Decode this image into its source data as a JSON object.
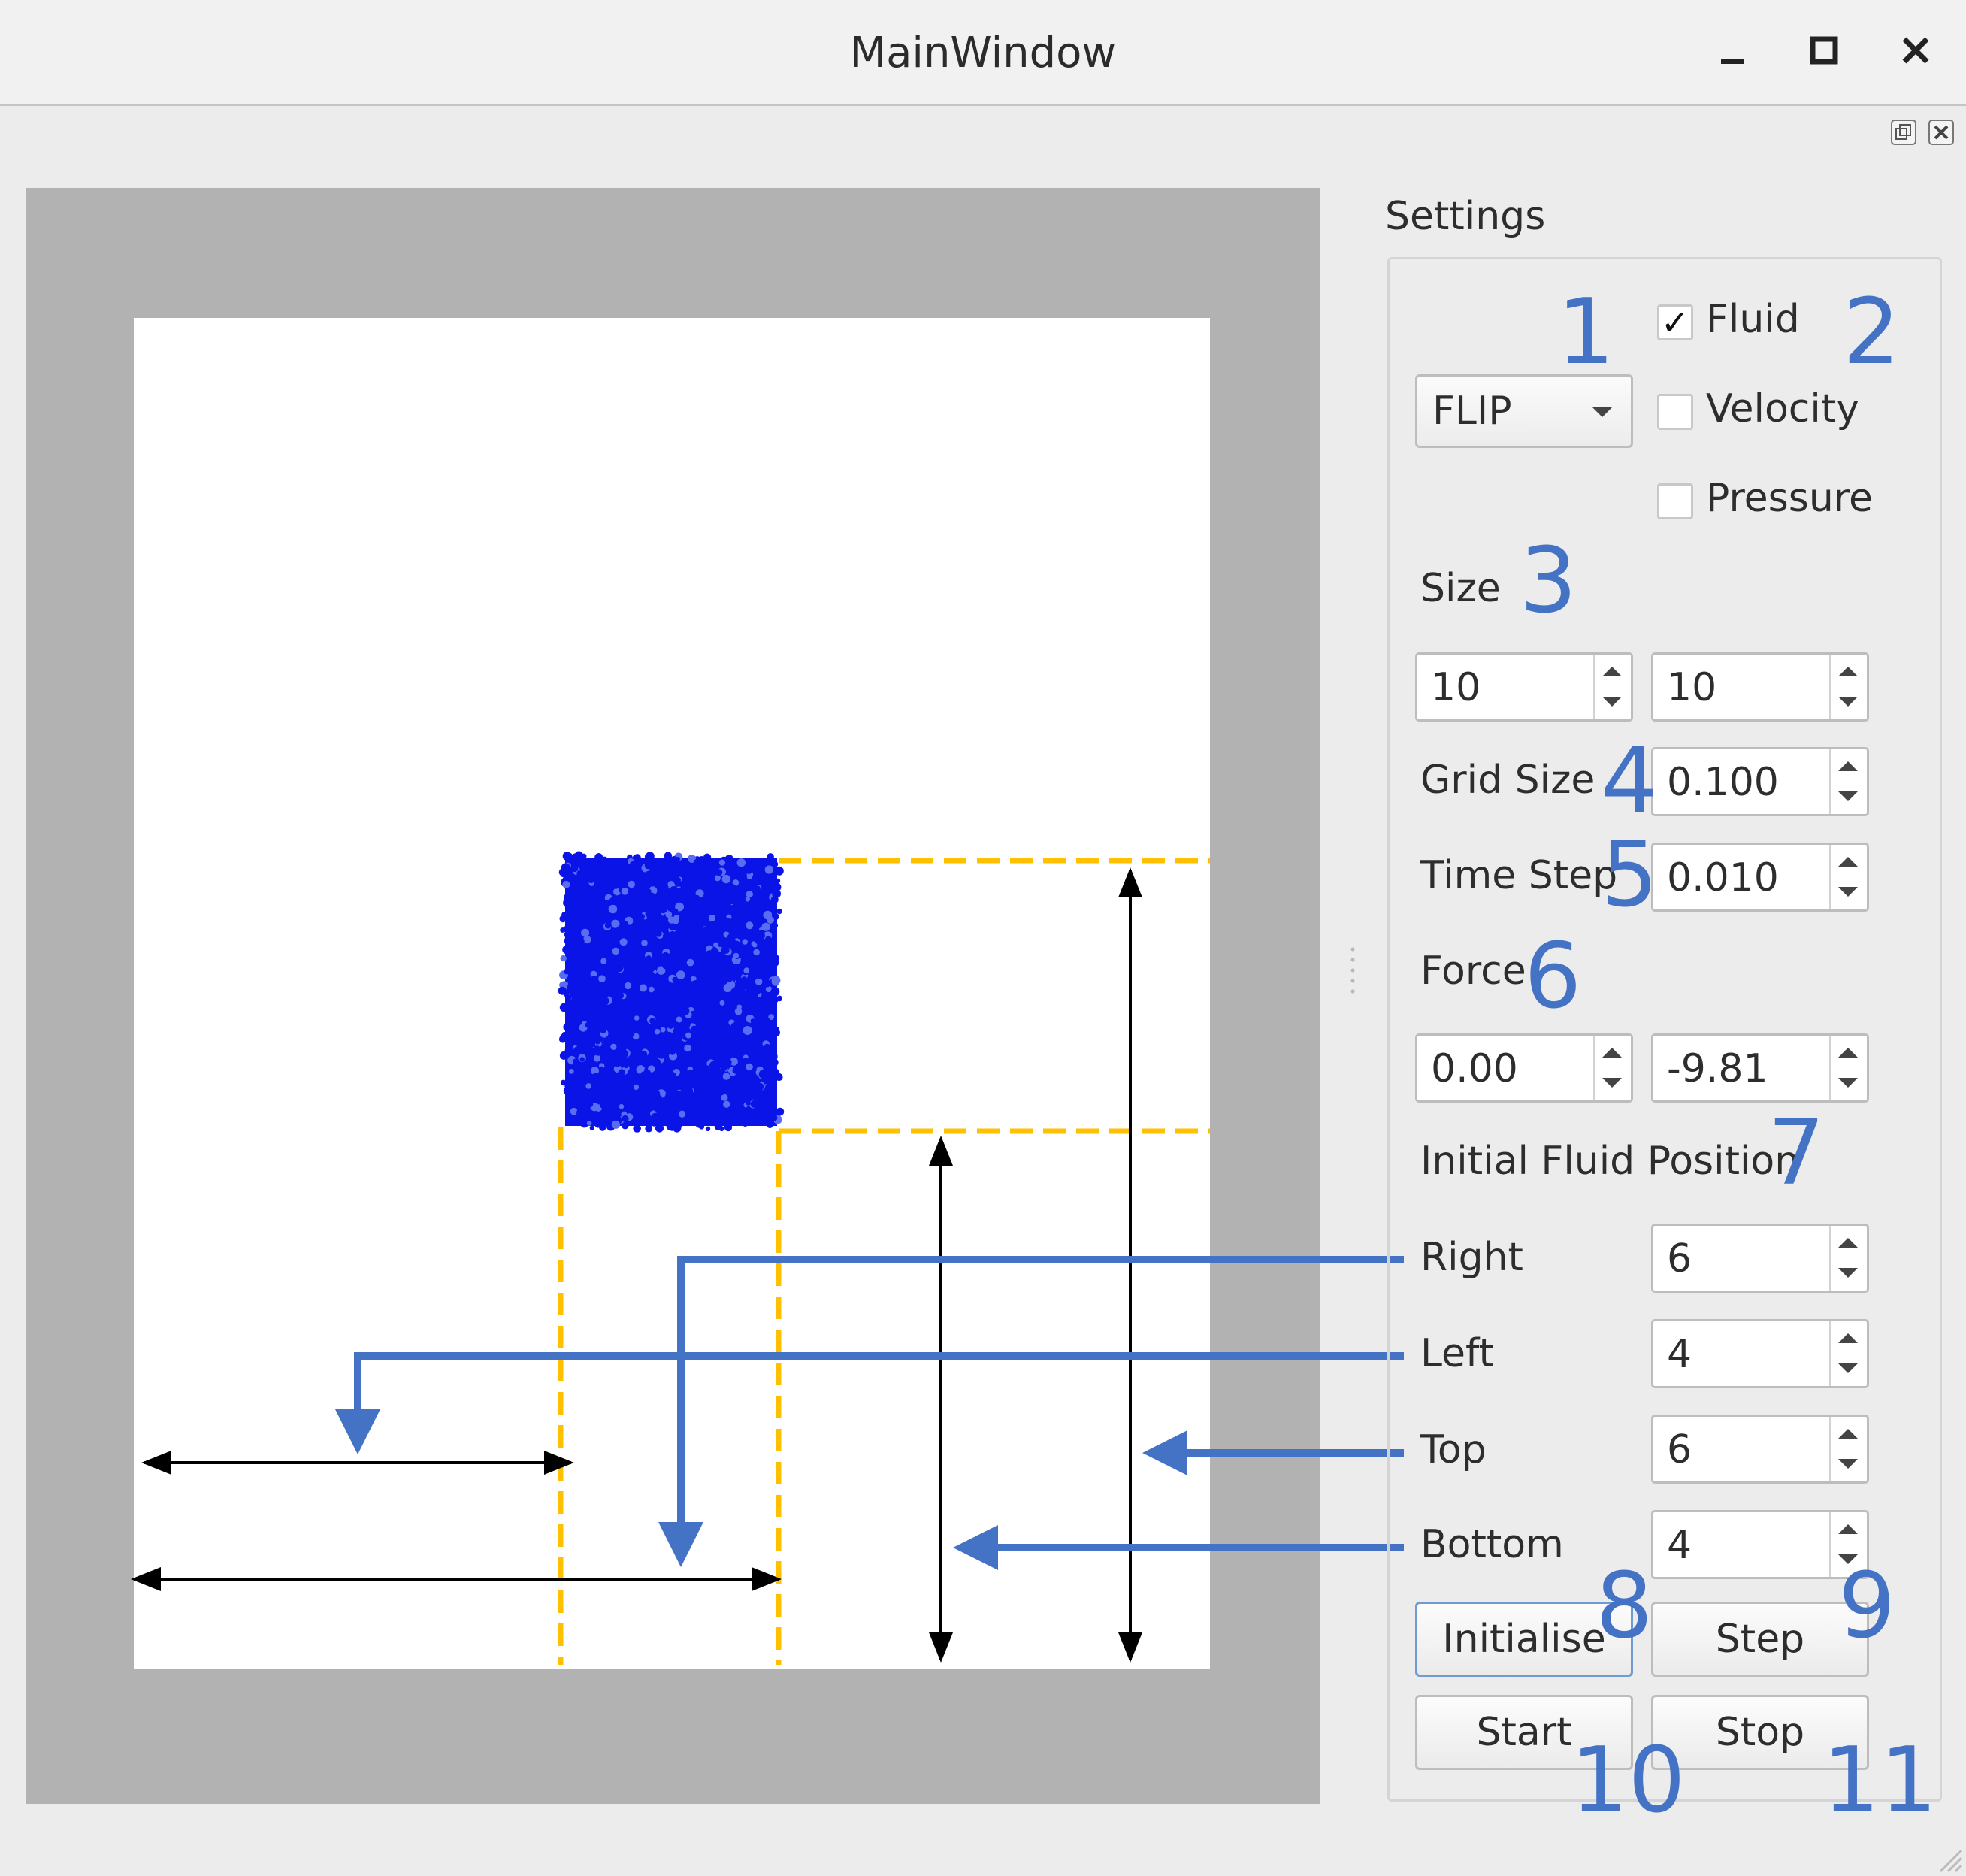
{
  "window": {
    "title": "MainWindow"
  },
  "settings": {
    "title": "Settings",
    "method": {
      "selected": "FLIP"
    },
    "display": {
      "fluid": {
        "label": "Fluid",
        "checked": true,
        "mark": "✓"
      },
      "velocity": {
        "label": "Velocity",
        "checked": false
      },
      "pressure": {
        "label": "Pressure",
        "checked": false
      }
    },
    "size": {
      "label": "Size",
      "x": "10",
      "y": "10"
    },
    "grid_size": {
      "label": "Grid Size",
      "value": "0.100"
    },
    "time_step": {
      "label": "Time Step",
      "value": "0.010"
    },
    "force": {
      "label": "Force",
      "x": "0.00",
      "y": "-9.81"
    },
    "initial_fluid_position": {
      "label": "Initial Fluid Position",
      "right": {
        "label": "Right",
        "value": "6"
      },
      "left": {
        "label": "Left",
        "value": "4"
      },
      "top": {
        "label": "Top",
        "value": "6"
      },
      "bottom": {
        "label": "Bottom",
        "value": "4"
      }
    },
    "buttons": {
      "initialise": "Initialise",
      "step": "Step",
      "start": "Start",
      "stop": "Stop"
    }
  },
  "annotations": [
    "1",
    "2",
    "3",
    "4",
    "5",
    "6",
    "7",
    "8",
    "9",
    "10",
    "11"
  ],
  "colors": {
    "annotation": "#4472c4",
    "fluid": "#0a14e6",
    "guide": "#ffc000",
    "dimension": "#000000"
  },
  "icons": {
    "minimize": "minimize-icon",
    "maximize": "maximize-icon",
    "close": "close-icon",
    "dock_float": "dock-float-icon",
    "dock_close": "dock-close-icon"
  }
}
